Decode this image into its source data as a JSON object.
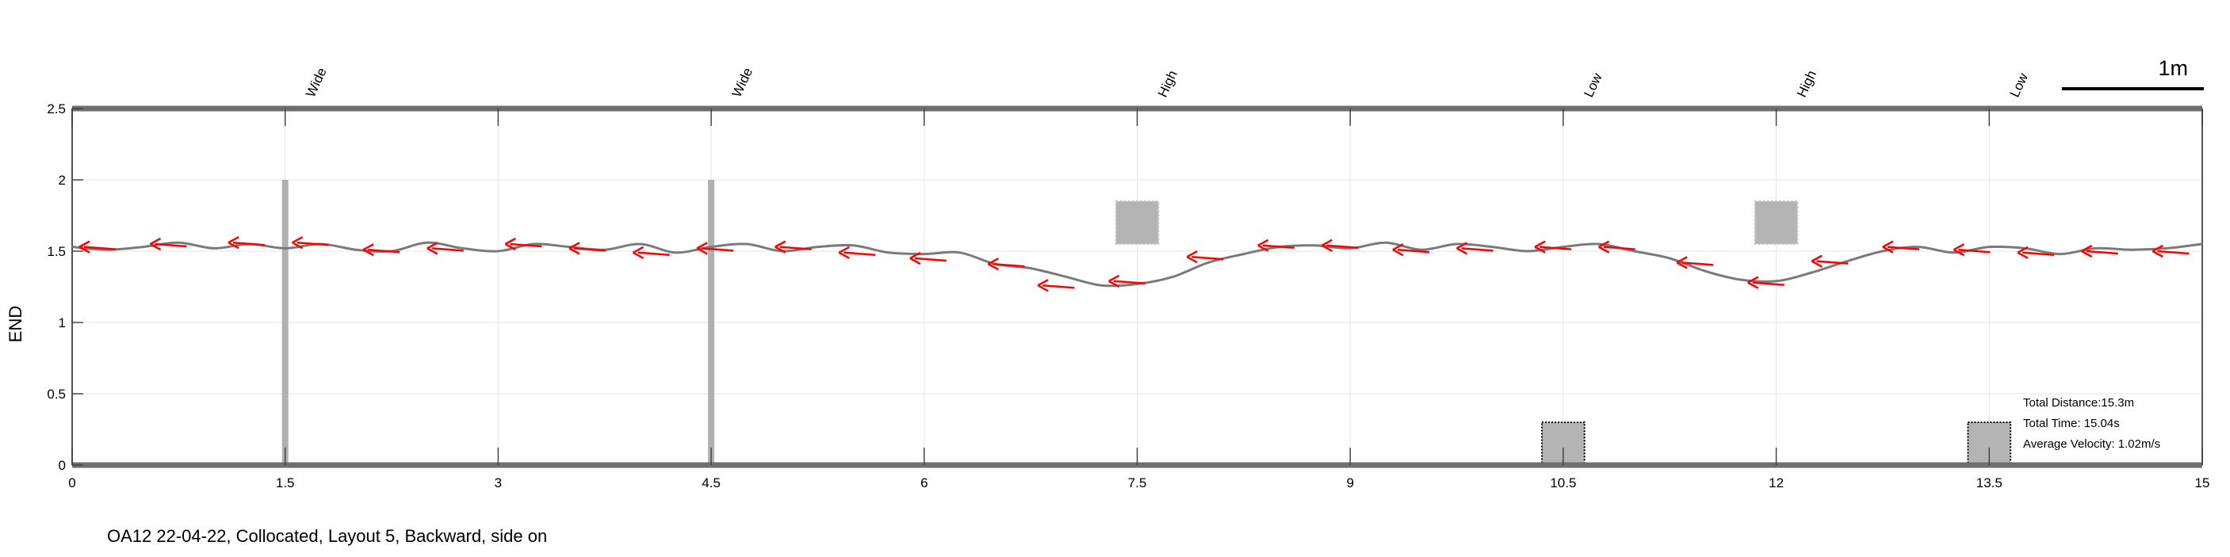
{
  "chart_data": {
    "type": "line",
    "caption": "OA12 22-04-22, Collocated, Layout 5, Backward, side on",
    "ylabel": "END",
    "xlim": [
      0,
      15
    ],
    "ylim": [
      0,
      2.5
    ],
    "xticks": [
      0,
      1.5,
      3,
      4.5,
      6,
      7.5,
      9,
      10.5,
      12,
      13.5,
      15
    ],
    "xtick_labels": [
      "0",
      "1.5",
      "3",
      "4.5",
      "6",
      "7.5",
      "9",
      "10.5",
      "12",
      "13.5",
      "15"
    ],
    "yticks": [
      0,
      0.5,
      1,
      1.5,
      2,
      2.5
    ],
    "ytick_labels": [
      "0",
      "0.5",
      "1",
      "1.5",
      "2",
      "2.5"
    ],
    "grid": true,
    "scale_bar": {
      "length_m": 1,
      "label": "1m"
    },
    "stats": {
      "distance": "Total Distance:15.3m",
      "time": "Total Time: 15.04s",
      "velocity": "Average Velocity: 1.02m/s"
    },
    "obstacles": [
      {
        "label": "Wide",
        "type": "wide",
        "x": 1.5,
        "y0": 0,
        "y1": 2.0
      },
      {
        "label": "Wide",
        "type": "wide",
        "x": 4.5,
        "y0": 0,
        "y1": 2.0
      },
      {
        "label": "High",
        "type": "high",
        "x0": 7.35,
        "x1": 7.65,
        "y0": 1.55,
        "y1": 1.85
      },
      {
        "label": "Low",
        "type": "low",
        "x0": 10.35,
        "x1": 10.65,
        "y0": 0,
        "y1": 0.3
      },
      {
        "label": "High",
        "type": "high",
        "x0": 11.85,
        "x1": 12.15,
        "y0": 1.55,
        "y1": 1.85
      },
      {
        "label": "Low",
        "type": "low",
        "x0": 13.35,
        "x1": 13.65,
        "y0": 0,
        "y1": 0.3
      }
    ],
    "series": [
      {
        "x": [
          0,
          0.25,
          0.5,
          0.75,
          1.0,
          1.25,
          1.5,
          1.75,
          2.0,
          2.25,
          2.5,
          2.75,
          3.0,
          3.25,
          3.5,
          3.75,
          4.0,
          4.25,
          4.5,
          4.75,
          5.0,
          5.25,
          5.5,
          5.75,
          6.0,
          6.25,
          6.5,
          6.75,
          7.0,
          7.25,
          7.5,
          7.75,
          8.0,
          8.25,
          8.5,
          8.75,
          9.0,
          9.25,
          9.5,
          9.75,
          10.0,
          10.25,
          10.5,
          10.75,
          11.0,
          11.25,
          11.5,
          11.75,
          12.0,
          12.25,
          12.5,
          12.75,
          13.0,
          13.25,
          13.5,
          13.75,
          14.0,
          14.25,
          14.5,
          14.75,
          15.0
        ],
        "y": [
          1.53,
          1.51,
          1.53,
          1.56,
          1.52,
          1.55,
          1.52,
          1.55,
          1.51,
          1.5,
          1.56,
          1.52,
          1.5,
          1.55,
          1.53,
          1.51,
          1.55,
          1.49,
          1.53,
          1.55,
          1.5,
          1.53,
          1.54,
          1.49,
          1.48,
          1.49,
          1.41,
          1.38,
          1.32,
          1.26,
          1.27,
          1.32,
          1.42,
          1.48,
          1.53,
          1.54,
          1.52,
          1.56,
          1.51,
          1.55,
          1.53,
          1.5,
          1.53,
          1.55,
          1.5,
          1.45,
          1.36,
          1.3,
          1.29,
          1.35,
          1.43,
          1.5,
          1.53,
          1.49,
          1.53,
          1.52,
          1.48,
          1.52,
          1.51,
          1.52,
          1.55
        ]
      }
    ],
    "arrows": [
      {
        "x": 0.05,
        "y": 1.53
      },
      {
        "x": 0.55,
        "y": 1.55
      },
      {
        "x": 1.1,
        "y": 1.56
      },
      {
        "x": 1.55,
        "y": 1.56
      },
      {
        "x": 2.05,
        "y": 1.51
      },
      {
        "x": 2.5,
        "y": 1.52
      },
      {
        "x": 3.05,
        "y": 1.55
      },
      {
        "x": 3.5,
        "y": 1.52
      },
      {
        "x": 3.95,
        "y": 1.49
      },
      {
        "x": 4.4,
        "y": 1.52
      },
      {
        "x": 4.95,
        "y": 1.53
      },
      {
        "x": 5.4,
        "y": 1.49
      },
      {
        "x": 5.9,
        "y": 1.45
      },
      {
        "x": 6.45,
        "y": 1.41
      },
      {
        "x": 6.8,
        "y": 1.26
      },
      {
        "x": 7.3,
        "y": 1.29
      },
      {
        "x": 7.85,
        "y": 1.46
      },
      {
        "x": 8.35,
        "y": 1.54
      },
      {
        "x": 8.8,
        "y": 1.54
      },
      {
        "x": 9.3,
        "y": 1.51
      },
      {
        "x": 9.75,
        "y": 1.52
      },
      {
        "x": 10.3,
        "y": 1.53
      },
      {
        "x": 10.75,
        "y": 1.53
      },
      {
        "x": 11.3,
        "y": 1.42
      },
      {
        "x": 11.8,
        "y": 1.28
      },
      {
        "x": 12.25,
        "y": 1.43
      },
      {
        "x": 12.75,
        "y": 1.53
      },
      {
        "x": 13.25,
        "y": 1.51
      },
      {
        "x": 13.7,
        "y": 1.49
      },
      {
        "x": 14.15,
        "y": 1.5
      },
      {
        "x": 14.65,
        "y": 1.5
      }
    ]
  }
}
